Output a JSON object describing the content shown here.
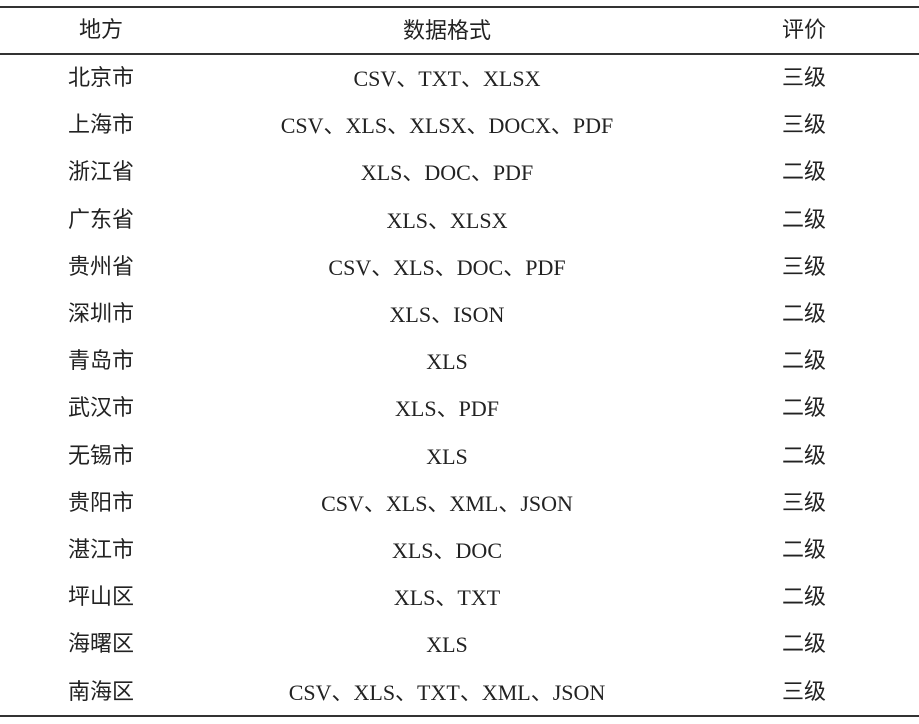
{
  "headers": [
    "地方",
    "数据格式",
    "评价"
  ],
  "rows": [
    [
      "北京市",
      "CSV、TXT、XLSX",
      "三级"
    ],
    [
      "上海市",
      "CSV、XLS、XLSX、DOCX、PDF",
      "三级"
    ],
    [
      "浙江省",
      "XLS、DOC、PDF",
      "二级"
    ],
    [
      "广东省",
      "XLS、XLSX",
      "二级"
    ],
    [
      "贵州省",
      "CSV、XLS、DOC、PDF",
      "三级"
    ],
    [
      "深圳市",
      "XLS、ISON",
      "二级"
    ],
    [
      "青岛市",
      "XLS",
      "二级"
    ],
    [
      "武汉市",
      "XLS、PDF",
      "二级"
    ],
    [
      "无锡市",
      "XLS",
      "二级"
    ],
    [
      "贵阳市",
      "CSV、XLS、XML、JSON",
      "三级"
    ],
    [
      "湛江市",
      "XLS、DOC",
      "二级"
    ],
    [
      "坪山区",
      "XLS、TXT",
      "二级"
    ],
    [
      "海曙区",
      "XLS",
      "二级"
    ],
    [
      "南海区",
      "CSV、XLS、TXT、XML、JSON",
      "三级"
    ]
  ]
}
